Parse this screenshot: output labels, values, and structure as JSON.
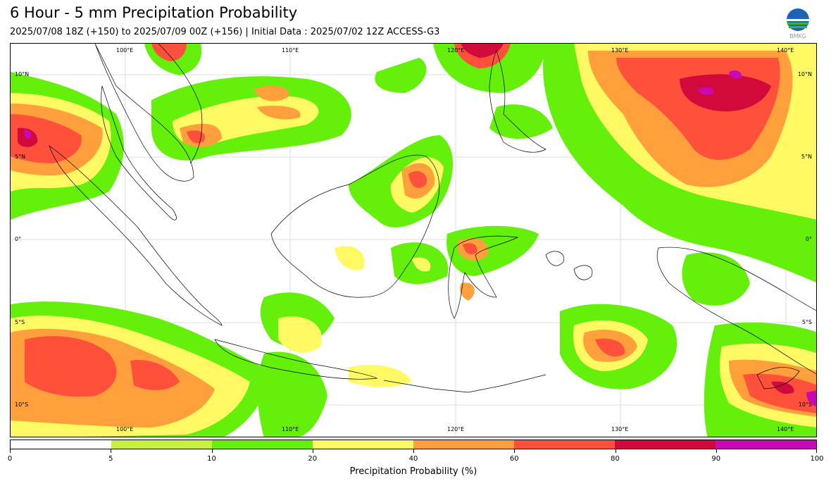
{
  "header": {
    "title": "6 Hour - 5 mm Precipitation Probability",
    "subtitle": "2025/07/08 18Z (+150) to 2025/07/09 00Z (+156) | Initial Data : 2025/07/02 12Z ACCESS-G3",
    "logo_text": "BMKG"
  },
  "map": {
    "lon_labels_top": [
      "100°E",
      "110°E",
      "120°E",
      "130°E",
      "140°E"
    ],
    "lon_labels_bottom": [
      "100°E",
      "110°E",
      "120°E",
      "130°E",
      "140°E"
    ],
    "lat_labels_left": [
      "10°N",
      "5°N",
      "0°",
      "5°S",
      "10°S"
    ],
    "lat_labels_right": [
      "10°N",
      "5°N",
      "0°",
      "5°S",
      "10°S"
    ],
    "extent": {
      "lon": [
        92.5,
        141.5
      ],
      "lat": [
        -11.8,
        12.2
      ]
    }
  },
  "colorbar": {
    "title": "Precipitation Probability (%)",
    "ticks": [
      "0",
      "5",
      "10",
      "20",
      "40",
      "60",
      "80",
      "90",
      "100"
    ],
    "colors": [
      "#ffffff",
      "#c8f040",
      "#64f00a",
      "#fffa64",
      "#ffa03c",
      "#ff503c",
      "#d20a3c",
      "#c80ab4"
    ]
  }
}
